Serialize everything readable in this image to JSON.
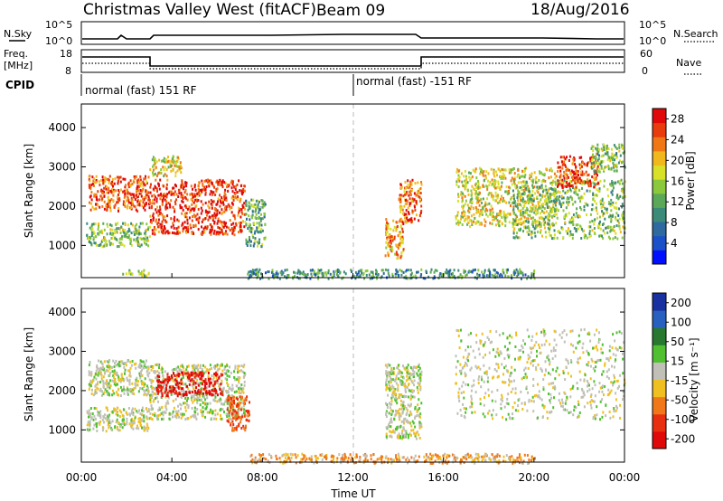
{
  "header": {
    "station": "Christmas Valley West (fitACF)",
    "beam": "Beam 09",
    "date": "18/Aug/2016"
  },
  "strip": {
    "nsky_label": "N.Sky",
    "nsky_ticks": [
      "10^5",
      "10^0"
    ],
    "nsearch_label": "N.Search",
    "nsearch_ticks": [
      "10^5",
      "10^0"
    ],
    "freq_label_1": "Freq.",
    "freq_label_2": "[MHz]",
    "freq_ticks": [
      "18",
      "8"
    ],
    "nave_label": "Nave",
    "nave_ticks": [
      "60",
      "0"
    ],
    "cpid_label": "CPID",
    "cpid_1": "normal (fast) 151 RF",
    "cpid_2": "normal (fast) -151 RF"
  },
  "chart_data": [
    {
      "type": "heatmap",
      "title": "",
      "ylabel": "Slant Range [km]",
      "xlabel": "Time UT",
      "xlim": [
        "00:00",
        "24:00"
      ],
      "x_ticks": [
        "00:00",
        "04:00",
        "08:00",
        "12:00",
        "16:00",
        "20:00",
        "00:00"
      ],
      "ylim": [
        180,
        4600
      ],
      "y_ticks": [
        1000,
        2000,
        3000,
        4000
      ],
      "colorbar": {
        "label": "Power [dB]",
        "ticks": [
          4,
          8,
          12,
          16,
          20,
          24,
          28
        ],
        "range": [
          0,
          30
        ],
        "colors": [
          "#0010ff",
          "#1a50c8",
          "#2e6aa0",
          "#3c8a78",
          "#5aa858",
          "#8cc83c",
          "#d8e028",
          "#f0b81c",
          "#f07814",
          "#e83c0c",
          "#e00808"
        ]
      },
      "regions": [
        {
          "t": [
            0.3,
            3.0
          ],
          "r": [
            1900,
            2800
          ],
          "v": 25
        },
        {
          "t": [
            0.2,
            3.0
          ],
          "r": [
            1000,
            1600
          ],
          "v": 14
        },
        {
          "t": [
            3.0,
            7.2
          ],
          "r": [
            1300,
            2700
          ],
          "v": 27
        },
        {
          "t": [
            3.0,
            4.4
          ],
          "r": [
            2800,
            3300
          ],
          "v": 18
        },
        {
          "t": [
            7.2,
            8.1
          ],
          "r": [
            1000,
            2200
          ],
          "v": 12
        },
        {
          "t": [
            1.8,
            3.0
          ],
          "r": [
            250,
            400
          ],
          "v": 15
        },
        {
          "t": [
            7.3,
            20.0
          ],
          "r": [
            180,
            420
          ],
          "v": 10
        },
        {
          "t": [
            13.4,
            14.2
          ],
          "r": [
            700,
            1700
          ],
          "v": 22
        },
        {
          "t": [
            14.0,
            15.0
          ],
          "r": [
            1600,
            2700
          ],
          "v": 24
        },
        {
          "t": [
            16.5,
            21.0
          ],
          "r": [
            1500,
            3000
          ],
          "v": 18
        },
        {
          "t": [
            19.0,
            24.0
          ],
          "r": [
            1200,
            2700
          ],
          "v": 14
        },
        {
          "t": [
            21.0,
            22.8
          ],
          "r": [
            2500,
            3300
          ],
          "v": 26
        },
        {
          "t": [
            22.5,
            24.0
          ],
          "r": [
            2900,
            3600
          ],
          "v": 14
        }
      ]
    },
    {
      "type": "heatmap",
      "title": "",
      "ylabel": "Slant Range [km]",
      "xlabel": "Time UT",
      "xlim": [
        "00:00",
        "24:00"
      ],
      "x_ticks": [
        "00:00",
        "04:00",
        "08:00",
        "12:00",
        "16:00",
        "20:00",
        "00:00"
      ],
      "ylim": [
        180,
        4600
      ],
      "y_ticks": [
        1000,
        2000,
        3000,
        4000
      ],
      "colorbar": {
        "label": "Velocity [m s⁻¹]",
        "ticks": [
          200,
          100,
          50,
          15,
          -15,
          -50,
          -100,
          -200
        ],
        "colors": [
          "#1830a0",
          "#2860c0",
          "#287830",
          "#50c030",
          "#c0c0b8",
          "#f0c020",
          "#f07818",
          "#e83010",
          "#e00808"
        ]
      },
      "regions": [
        {
          "t": [
            0.3,
            3.0
          ],
          "r": [
            1900,
            2800
          ],
          "v": 0
        },
        {
          "t": [
            0.2,
            3.0
          ],
          "r": [
            1000,
            1600
          ],
          "v": 0
        },
        {
          "t": [
            3.0,
            7.2
          ],
          "r": [
            1300,
            2700
          ],
          "v": 0
        },
        {
          "t": [
            3.3,
            6.2
          ],
          "r": [
            1900,
            2500
          ],
          "v": -160
        },
        {
          "t": [
            6.4,
            7.4
          ],
          "r": [
            1000,
            1900
          ],
          "v": -80
        },
        {
          "t": [
            7.3,
            20.0
          ],
          "r": [
            180,
            420
          ],
          "v": -30
        },
        {
          "t": [
            13.4,
            15.0
          ],
          "r": [
            800,
            2700
          ],
          "v": 0
        },
        {
          "t": [
            16.5,
            24.0
          ],
          "r": [
            1300,
            3600
          ],
          "v": 0
        }
      ]
    }
  ]
}
